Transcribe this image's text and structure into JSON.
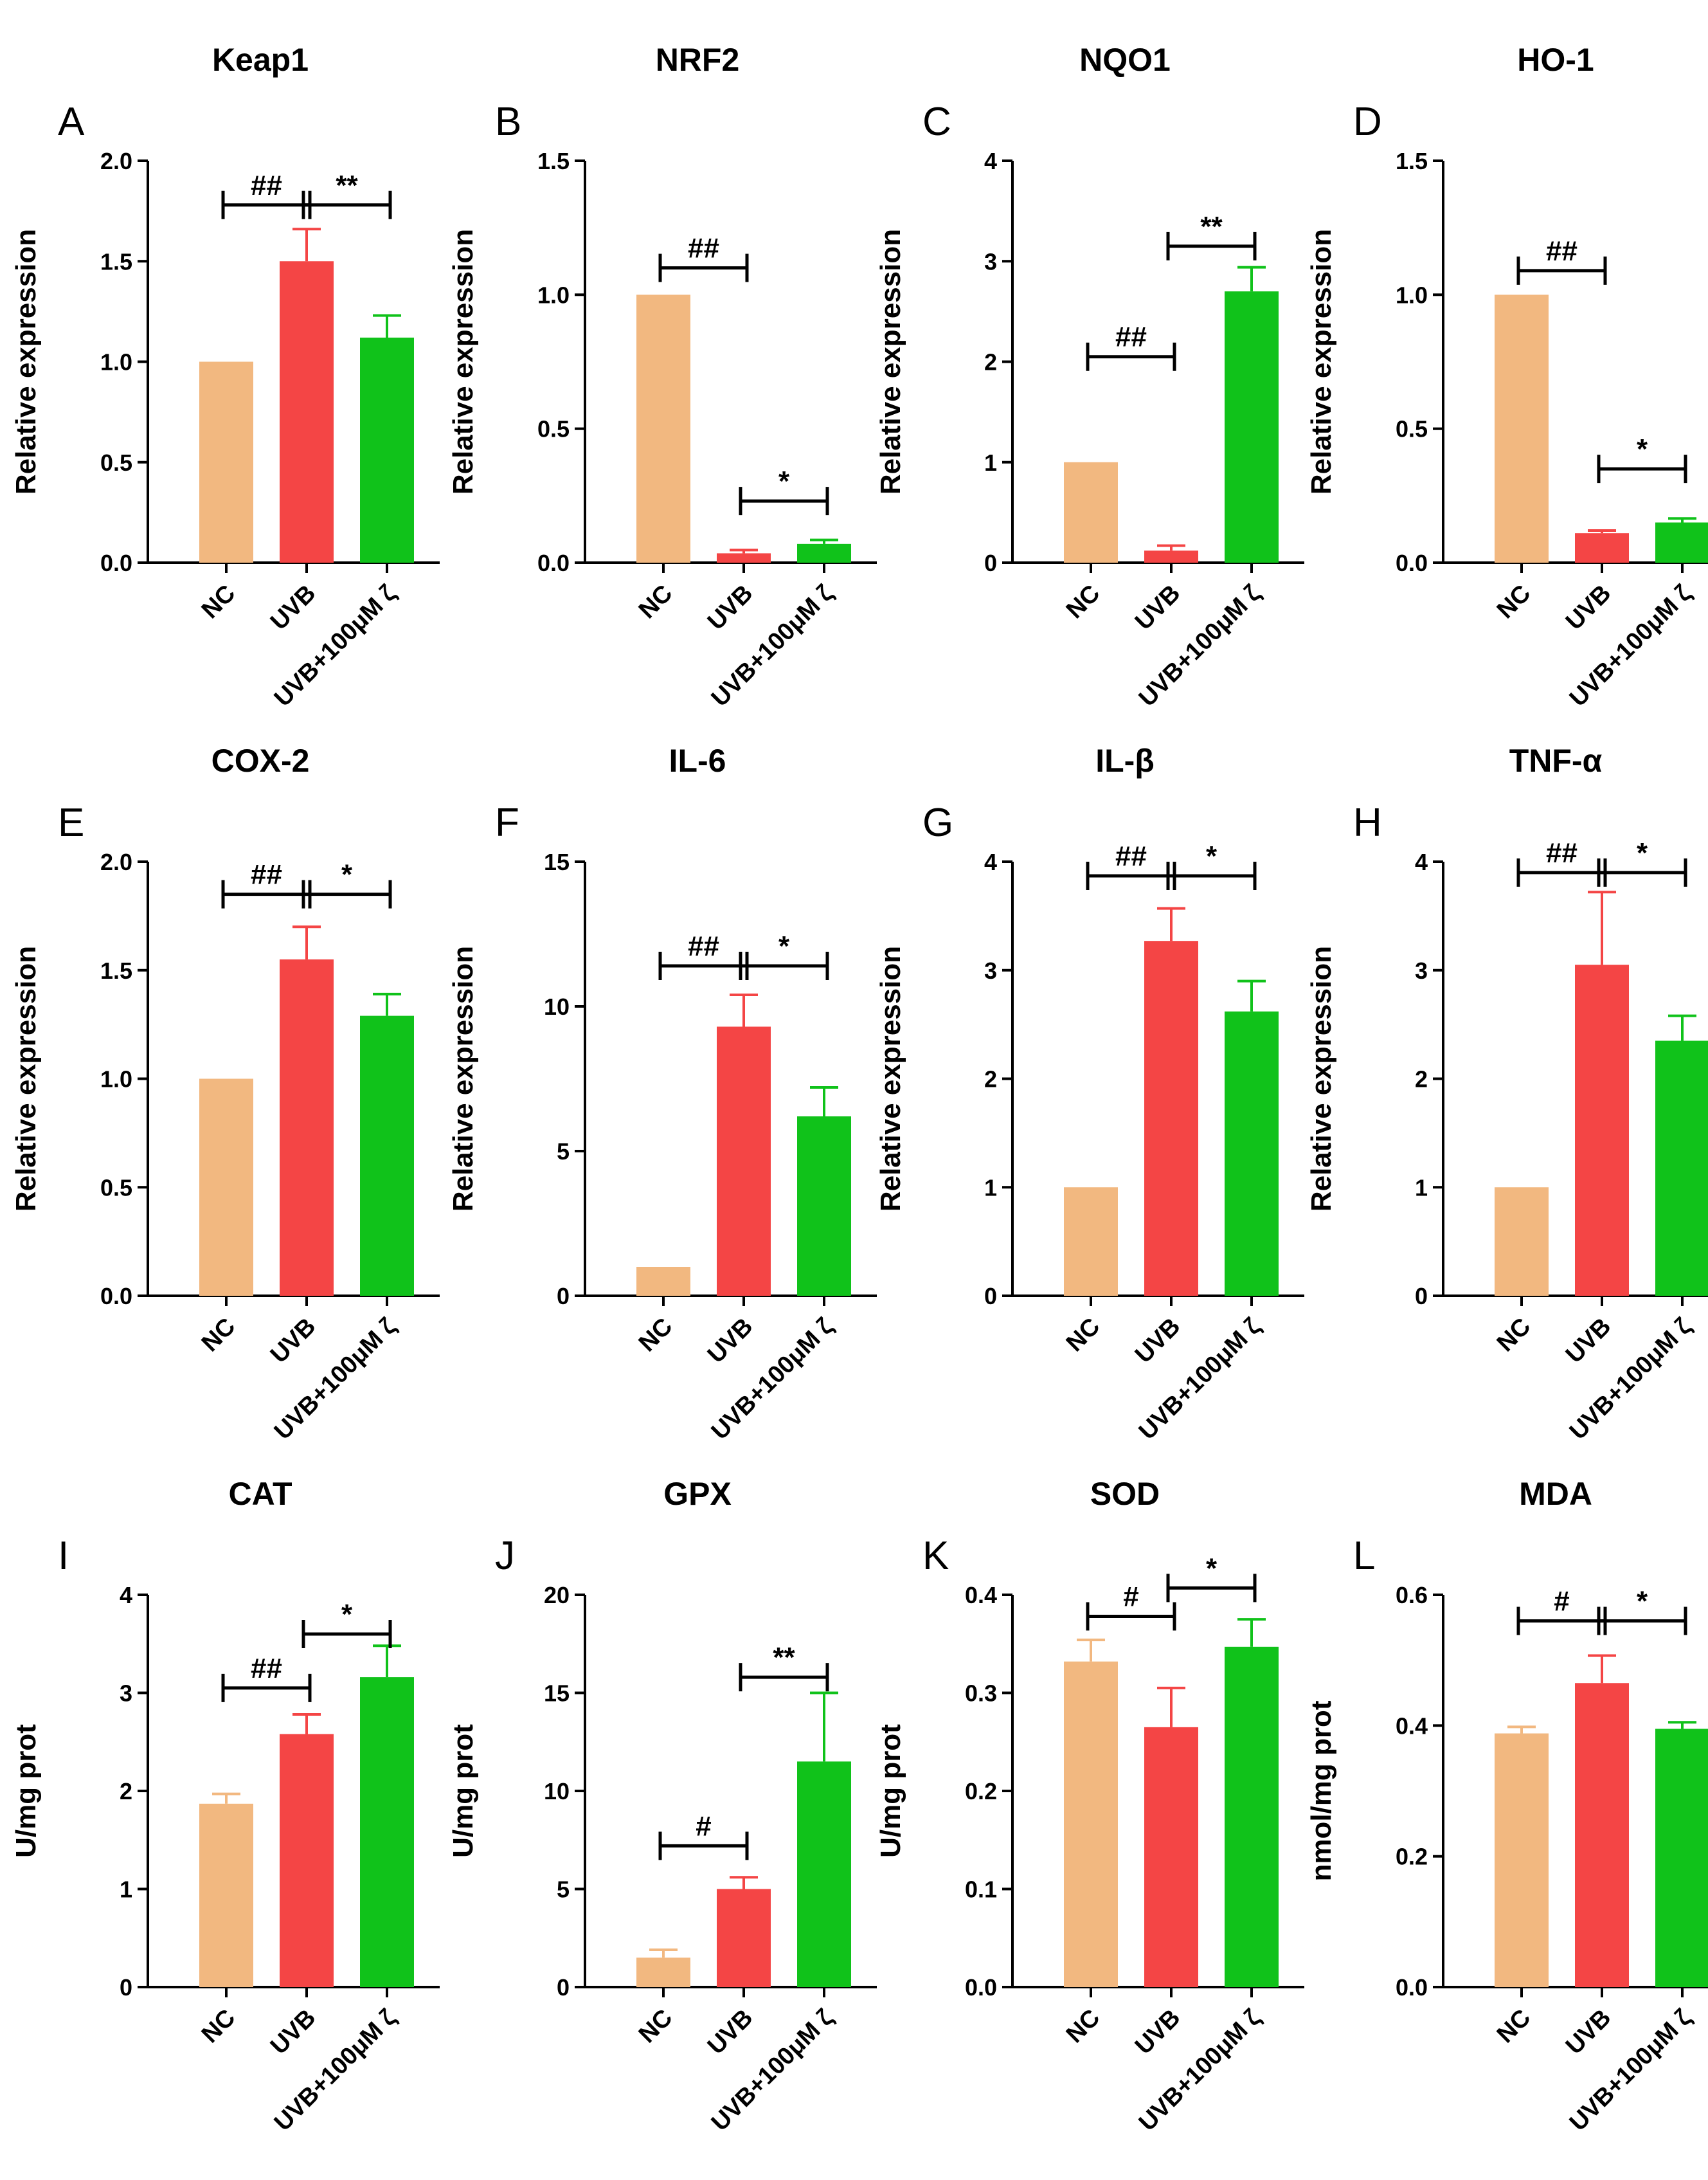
{
  "colors": {
    "NC": "#F2B880",
    "UVB": "#F44545",
    "UVB+100μM ζ": "#10C21A"
  },
  "chart_data": [
    {
      "type": "bar",
      "letter": "A",
      "title": "Keap1",
      "ylabel": "Relative expression",
      "categories": [
        "NC",
        "UVB",
        "UVB+100μM ζ"
      ],
      "values": [
        1.0,
        1.5,
        1.12
      ],
      "errors": [
        0,
        0.16,
        0.11
      ],
      "ylim": [
        0,
        2.0
      ],
      "yticks": [
        "0.0",
        "0.5",
        "1.0",
        "1.5",
        "2.0"
      ],
      "significance": [
        {
          "from": 0,
          "to": 1,
          "y": 1.78,
          "label": "##"
        },
        {
          "from": 1,
          "to": 2,
          "y": 1.78,
          "label": "**"
        }
      ]
    },
    {
      "type": "bar",
      "letter": "B",
      "title": "NRF2",
      "ylabel": "Relative expression",
      "categories": [
        "NC",
        "UVB",
        "UVB+100μM ζ"
      ],
      "values": [
        1.0,
        0.035,
        0.07
      ],
      "errors": [
        0,
        0.012,
        0.015
      ],
      "ylim": [
        0,
        1.5
      ],
      "yticks": [
        "0.0",
        "0.5",
        "1.0",
        "1.5"
      ],
      "significance": [
        {
          "from": 0,
          "to": 1,
          "y": 1.1,
          "label": "##"
        },
        {
          "from": 1,
          "to": 2,
          "y": 0.23,
          "label": "*"
        }
      ]
    },
    {
      "type": "bar",
      "letter": "C",
      "title": "NQO1",
      "ylabel": "Relative expression",
      "categories": [
        "NC",
        "UVB",
        "UVB+100μM ζ"
      ],
      "values": [
        1.0,
        0.12,
        2.7
      ],
      "errors": [
        0,
        0.05,
        0.24
      ],
      "ylim": [
        0,
        4
      ],
      "yticks": [
        "0",
        "1",
        "2",
        "3",
        "4"
      ],
      "significance": [
        {
          "from": 0,
          "to": 1,
          "y": 2.05,
          "label": "##"
        },
        {
          "from": 1,
          "to": 2,
          "y": 3.15,
          "label": "**"
        }
      ]
    },
    {
      "type": "bar",
      "letter": "D",
      "title": "HO-1",
      "ylabel": "Relative expression",
      "categories": [
        "NC",
        "UVB",
        "UVB+100μM ζ"
      ],
      "values": [
        1.0,
        0.11,
        0.15
      ],
      "errors": [
        0,
        0.01,
        0.015
      ],
      "ylim": [
        0,
        1.5
      ],
      "yticks": [
        "0.0",
        "0.5",
        "1.0",
        "1.5"
      ],
      "significance": [
        {
          "from": 0,
          "to": 1,
          "y": 1.09,
          "label": "##"
        },
        {
          "from": 1,
          "to": 2,
          "y": 0.35,
          "label": "*"
        }
      ]
    },
    {
      "type": "bar",
      "letter": "E",
      "title": "COX-2",
      "ylabel": "Relative expression",
      "categories": [
        "NC",
        "UVB",
        "UVB+100μM ζ"
      ],
      "values": [
        1.0,
        1.55,
        1.29
      ],
      "errors": [
        0,
        0.15,
        0.1
      ],
      "ylim": [
        0,
        2.0
      ],
      "yticks": [
        "0.0",
        "0.5",
        "1.0",
        "1.5",
        "2.0"
      ],
      "significance": [
        {
          "from": 0,
          "to": 1,
          "y": 1.85,
          "label": "##"
        },
        {
          "from": 1,
          "to": 2,
          "y": 1.85,
          "label": "*"
        }
      ]
    },
    {
      "type": "bar",
      "letter": "F",
      "title": "IL-6",
      "ylabel": "Relative expression",
      "categories": [
        "NC",
        "UVB",
        "UVB+100μM ζ"
      ],
      "values": [
        1.0,
        9.3,
        6.2
      ],
      "errors": [
        0,
        1.1,
        1.0
      ],
      "ylim": [
        0,
        15
      ],
      "yticks": [
        "0",
        "5",
        "10",
        "15"
      ],
      "significance": [
        {
          "from": 0,
          "to": 1,
          "y": 11.4,
          "label": "##"
        },
        {
          "from": 1,
          "to": 2,
          "y": 11.4,
          "label": "*"
        }
      ]
    },
    {
      "type": "bar",
      "letter": "G",
      "title": "IL-β",
      "ylabel": "Relative expression",
      "categories": [
        "NC",
        "UVB",
        "UVB+100μM ζ"
      ],
      "values": [
        1.0,
        3.27,
        2.62
      ],
      "errors": [
        0,
        0.3,
        0.28
      ],
      "ylim": [
        0,
        4
      ],
      "yticks": [
        "0",
        "1",
        "2",
        "3",
        "4"
      ],
      "significance": [
        {
          "from": 0,
          "to": 1,
          "y": 3.87,
          "label": "##"
        },
        {
          "from": 1,
          "to": 2,
          "y": 3.87,
          "label": "*"
        }
      ]
    },
    {
      "type": "bar",
      "letter": "H",
      "title": "TNF-α",
      "ylabel": "Relative expression",
      "categories": [
        "NC",
        "UVB",
        "UVB+100μM ζ"
      ],
      "values": [
        1.0,
        3.05,
        2.35
      ],
      "errors": [
        0,
        0.67,
        0.23
      ],
      "ylim": [
        0,
        4
      ],
      "yticks": [
        "0",
        "1",
        "2",
        "3",
        "4"
      ],
      "significance": [
        {
          "from": 0,
          "to": 1,
          "y": 3.9,
          "label": "##"
        },
        {
          "from": 1,
          "to": 2,
          "y": 3.9,
          "label": "*"
        }
      ]
    },
    {
      "type": "bar",
      "letter": "I",
      "title": "CAT",
      "ylabel": "U/mg prot",
      "categories": [
        "NC",
        "UVB",
        "UVB+100μM ζ"
      ],
      "values": [
        1.87,
        2.58,
        3.16
      ],
      "errors": [
        0.1,
        0.2,
        0.32
      ],
      "ylim": [
        0,
        4
      ],
      "yticks": [
        "0",
        "1",
        "2",
        "3",
        "4"
      ],
      "significance": [
        {
          "from": 0,
          "to": 1,
          "y": 3.05,
          "label": "##"
        },
        {
          "from": 1,
          "to": 2,
          "y": 3.6,
          "label": "*"
        }
      ]
    },
    {
      "type": "bar",
      "letter": "J",
      "title": "GPX",
      "ylabel": "U/mg prot",
      "categories": [
        "NC",
        "UVB",
        "UVB+100μM ζ"
      ],
      "values": [
        1.5,
        5.0,
        11.5
      ],
      "errors": [
        0.4,
        0.6,
        3.5
      ],
      "ylim": [
        0,
        20
      ],
      "yticks": [
        "0",
        "5",
        "10",
        "15",
        "20"
      ],
      "significance": [
        {
          "from": 0,
          "to": 1,
          "y": 7.2,
          "label": "#"
        },
        {
          "from": 1,
          "to": 2,
          "y": 15.8,
          "label": "**"
        }
      ]
    },
    {
      "type": "bar",
      "letter": "K",
      "title": "SOD",
      "ylabel": "U/mg prot",
      "categories": [
        "NC",
        "UVB",
        "UVB+100μM ζ"
      ],
      "values": [
        0.332,
        0.265,
        0.347
      ],
      "errors": [
        0.022,
        0.04,
        0.028
      ],
      "ylim": [
        0,
        0.4
      ],
      "yticks": [
        "0.0",
        "0.1",
        "0.2",
        "0.3",
        "0.4"
      ],
      "significance": [
        {
          "from": 0,
          "to": 1,
          "y": 0.378,
          "label": "#"
        },
        {
          "from": 1,
          "to": 2,
          "y": 0.407,
          "label": "*"
        }
      ]
    },
    {
      "type": "bar",
      "letter": "L",
      "title": "MDA",
      "ylabel": "nmol/mg prot",
      "categories": [
        "NC",
        "UVB",
        "UVB+100μM ζ"
      ],
      "values": [
        0.388,
        0.465,
        0.395
      ],
      "errors": [
        0.01,
        0.042,
        0.01
      ],
      "ylim": [
        0,
        0.6
      ],
      "yticks": [
        "0.0",
        "0.2",
        "0.4",
        "0.6"
      ],
      "significance": [
        {
          "from": 0,
          "to": 1,
          "y": 0.56,
          "label": "#"
        },
        {
          "from": 1,
          "to": 2,
          "y": 0.56,
          "label": "*"
        }
      ]
    }
  ]
}
